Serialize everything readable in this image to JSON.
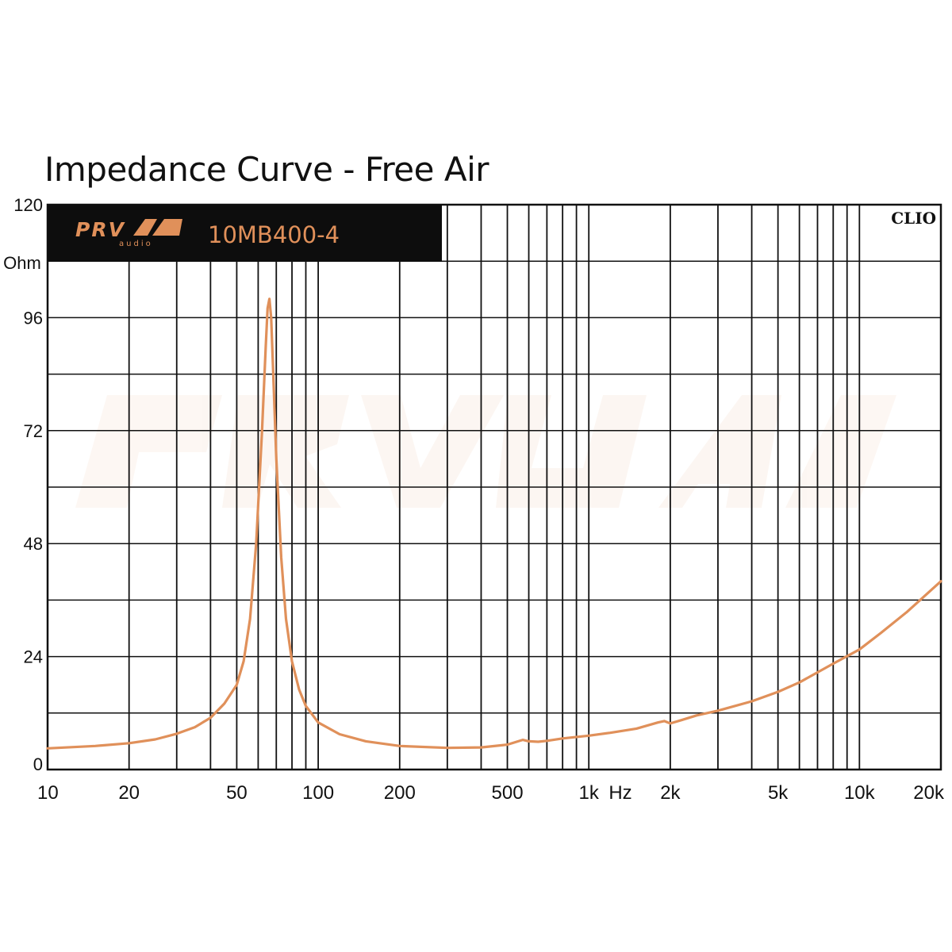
{
  "chart_data": {
    "type": "line",
    "title": "Impedance Curve - Free Air",
    "xscale": "log",
    "xlim": [
      10,
      20000
    ],
    "ylim": [
      0,
      120
    ],
    "xlabel": "Hz",
    "ylabel": "Ohm",
    "grid": true,
    "y_ticks": [
      "0",
      "24",
      "48",
      "72",
      "96",
      "120"
    ],
    "x_ticks": [
      {
        "value": 10,
        "label": "10"
      },
      {
        "value": 20,
        "label": "20"
      },
      {
        "value": 50,
        "label": "50"
      },
      {
        "value": 100,
        "label": "100"
      },
      {
        "value": 200,
        "label": "200"
      },
      {
        "value": 500,
        "label": "500"
      },
      {
        "value": 1000,
        "label": "1k"
      },
      {
        "value": 2000,
        "label": "2k"
      },
      {
        "value": 5000,
        "label": "5k"
      },
      {
        "value": 10000,
        "label": "10k"
      },
      {
        "value": 20000,
        "label": "20k"
      }
    ],
    "brand": "PRV audio",
    "model": "10MB400-4",
    "software": "CLIO",
    "curve_color": "#e0905a",
    "series": [
      {
        "x": [
          10,
          15,
          20,
          25,
          30,
          35,
          40,
          45,
          50,
          53,
          56,
          59,
          62,
          64,
          65,
          66,
          67,
          68,
          70,
          73,
          76,
          80,
          85,
          90,
          100,
          120,
          150,
          200,
          300,
          400,
          500,
          570,
          600,
          650,
          700,
          800,
          1000,
          1200,
          1500,
          1800,
          1900,
          2000,
          2200,
          2500,
          3000,
          4000,
          5000,
          6000,
          8000,
          10000,
          12000,
          15000,
          20000
        ],
        "y": [
          4.5,
          5.0,
          5.6,
          6.4,
          7.6,
          9.0,
          11.0,
          14.0,
          18.0,
          23.0,
          32.0,
          48.0,
          72.0,
          90.0,
          98.0,
          100.0,
          96.0,
          86.0,
          66.0,
          45.0,
          32.0,
          23.0,
          17.0,
          13.5,
          10.0,
          7.5,
          6.0,
          5.0,
          4.6,
          4.7,
          5.3,
          6.3,
          6.0,
          5.9,
          6.1,
          6.6,
          7.2,
          7.8,
          8.7,
          10.0,
          10.3,
          9.8,
          10.5,
          11.5,
          12.5,
          14.5,
          16.5,
          18.5,
          22.5,
          25.5,
          29.0,
          33.5,
          40.0
        ]
      }
    ]
  }
}
